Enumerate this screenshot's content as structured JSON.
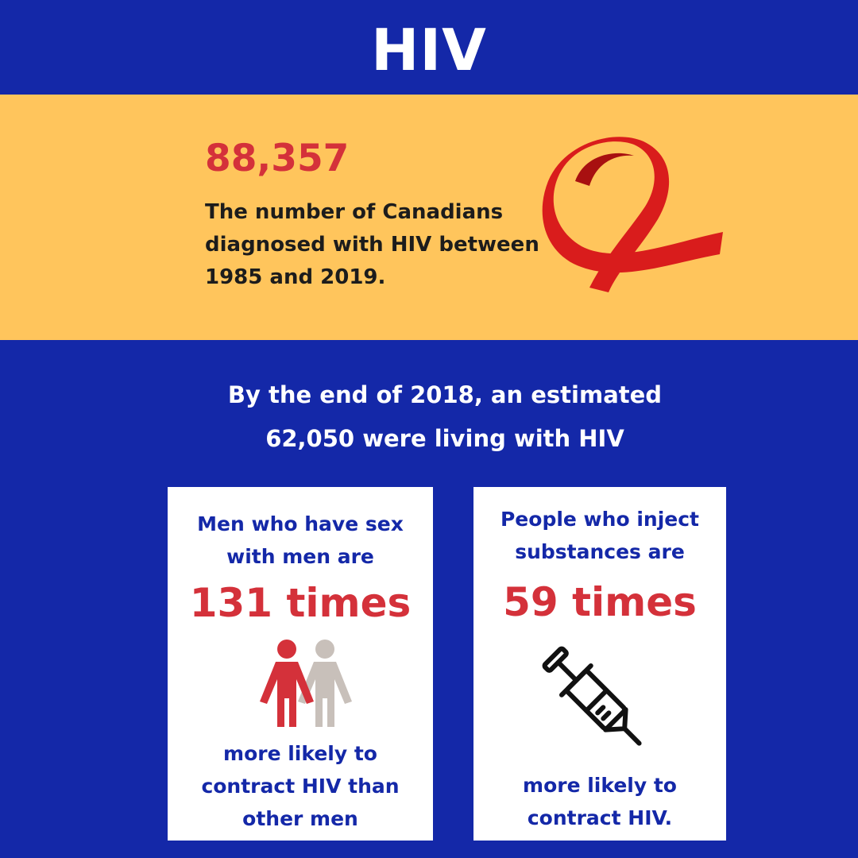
{
  "header": {
    "title": "HIV"
  },
  "diagnosed": {
    "number": "88,357",
    "description": "The number of Canadians diagnosed with HIV between 1985 and 2019."
  },
  "living": {
    "text": "By the end of 2018, an estimated 62,050 were living with HIV"
  },
  "cards": [
    {
      "intro": "Men who have sex with men are",
      "big": "131 times",
      "outro": "more likely to contract HIV than other men",
      "icon": "two-people-icon"
    },
    {
      "intro": "People who inject substances are",
      "big": "59 times",
      "outro": "more likely to contract HIV.",
      "icon": "syringe-icon"
    }
  ],
  "colors": {
    "background": "#1428a8",
    "band": "#ffc55c",
    "accent_red": "#d4313a",
    "person_grey": "#c8c0ba",
    "ribbon_red": "#d91c1c"
  }
}
